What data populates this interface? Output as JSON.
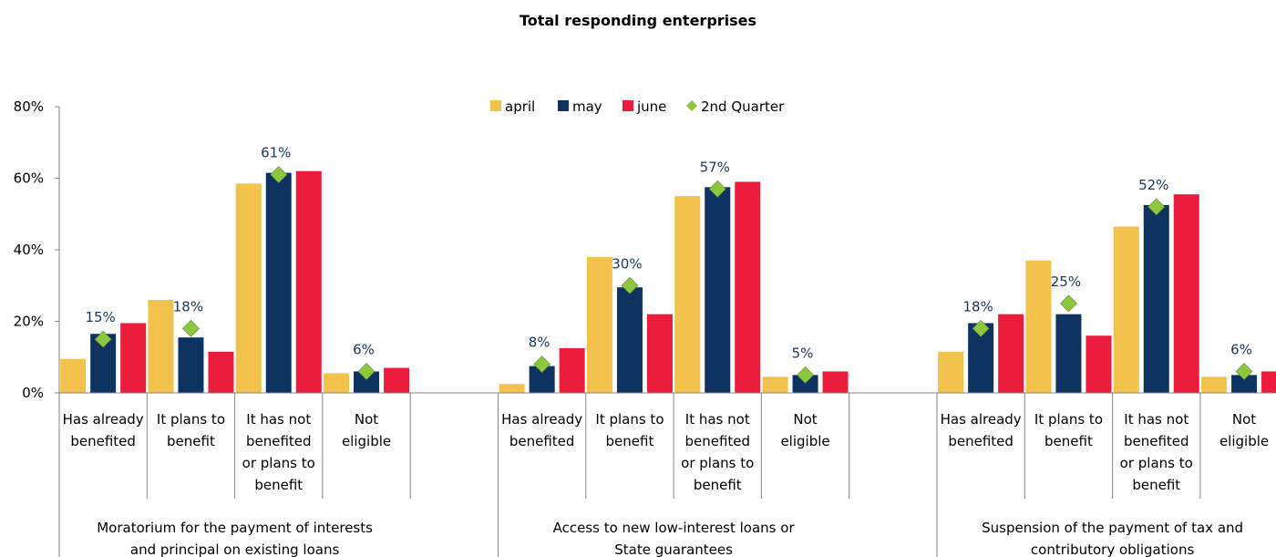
{
  "chart_data": {
    "type": "bar",
    "title": "Total responding enterprises",
    "ylim": [
      0,
      80
    ],
    "yticks": [
      "0%",
      "20%",
      "40%",
      "60%",
      "80%"
    ],
    "tick_values": [
      0,
      20,
      40,
      60,
      80
    ],
    "legend_position": "top",
    "groups": [
      {
        "label": "Moratorium for the payment of interests and principal on existing loans",
        "categories": [
          "Has already benefited",
          "It plans to benefit",
          "It has not benefited or plans to benefit",
          "Not eligible"
        ]
      },
      {
        "label": "Access to new low-interest loans or State guarantees",
        "categories": [
          "Has already benefited",
          "It plans to benefit",
          "It has not benefited or plans to benefit",
          "Not eligible"
        ]
      },
      {
        "label": "Suspension of the payment of tax and contributory obligations",
        "categories": [
          "Has already benefited",
          "It plans to benefit",
          "It has not benefited or plans to benefit",
          "Not eligible"
        ]
      }
    ],
    "series": [
      {
        "name": "april",
        "color": "#f2c24c",
        "values": [
          [
            9.5,
            26,
            58.5,
            5.5
          ],
          [
            2.5,
            38,
            55,
            4.5
          ],
          [
            11.5,
            37,
            46.5,
            4.5
          ]
        ]
      },
      {
        "name": "may",
        "color": "#0f3361",
        "values": [
          [
            16.5,
            15.5,
            61.5,
            6
          ],
          [
            7.5,
            29.5,
            57.5,
            5
          ],
          [
            19.5,
            22,
            52.5,
            5
          ]
        ]
      },
      {
        "name": "june",
        "color": "#ec1c3c",
        "values": [
          [
            19.5,
            11.5,
            62,
            7
          ],
          [
            12.5,
            22,
            59,
            6
          ],
          [
            22,
            16,
            55.5,
            6
          ]
        ]
      }
    ],
    "quarter": {
      "name": "2nd Quarter",
      "color": "#8dc63f",
      "values": [
        [
          15,
          18,
          61,
          6
        ],
        [
          8,
          30,
          57,
          5
        ],
        [
          18,
          25,
          52,
          6
        ]
      ],
      "labels": [
        [
          "15%",
          "18%",
          "61%",
          "6%"
        ],
        [
          "8%",
          "30%",
          "57%",
          "5%"
        ],
        [
          "18%",
          "25%",
          "52%",
          "6%"
        ]
      ]
    }
  }
}
